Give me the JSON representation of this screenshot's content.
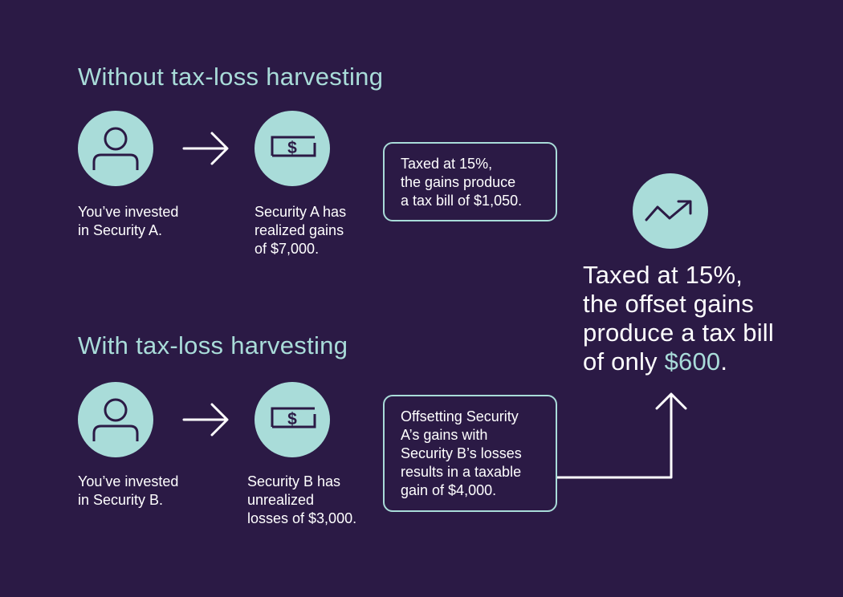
{
  "colors": {
    "background": "#2b1a45",
    "accent": "#a9dcd9",
    "text": "#ffffff",
    "icon": "#2b1a45"
  },
  "without": {
    "heading": "Without tax-loss harvesting",
    "investor_icon": "person-icon",
    "security_icon": "dollar-bill-icon",
    "investor_label": [
      "You’ve invested",
      "in Security A."
    ],
    "security_label": [
      "Security A has",
      "realized gains",
      "of $7,000."
    ],
    "result_box": [
      "Taxed at 15%,",
      "the gains produce",
      "a tax bill of $1,050."
    ]
  },
  "with": {
    "heading": "With tax-loss harvesting",
    "investor_icon": "person-icon",
    "security_icon": "dollar-bill-icon",
    "investor_label": [
      "You’ve invested",
      "in Security B."
    ],
    "security_label": [
      "Security B has",
      "unrealized",
      "losses of $3,000."
    ],
    "result_box": [
      "Offsetting Security",
      "A’s gains with",
      "Security B’s losses",
      "results in a taxable",
      "gain of $4,000."
    ]
  },
  "outcome": {
    "icon": "trend-up-icon",
    "lines": [
      "Taxed at 15%,",
      "the offset gains",
      "produce a tax bill"
    ],
    "last_prefix": "of only ",
    "amount": "$600",
    "last_suffix": "."
  }
}
